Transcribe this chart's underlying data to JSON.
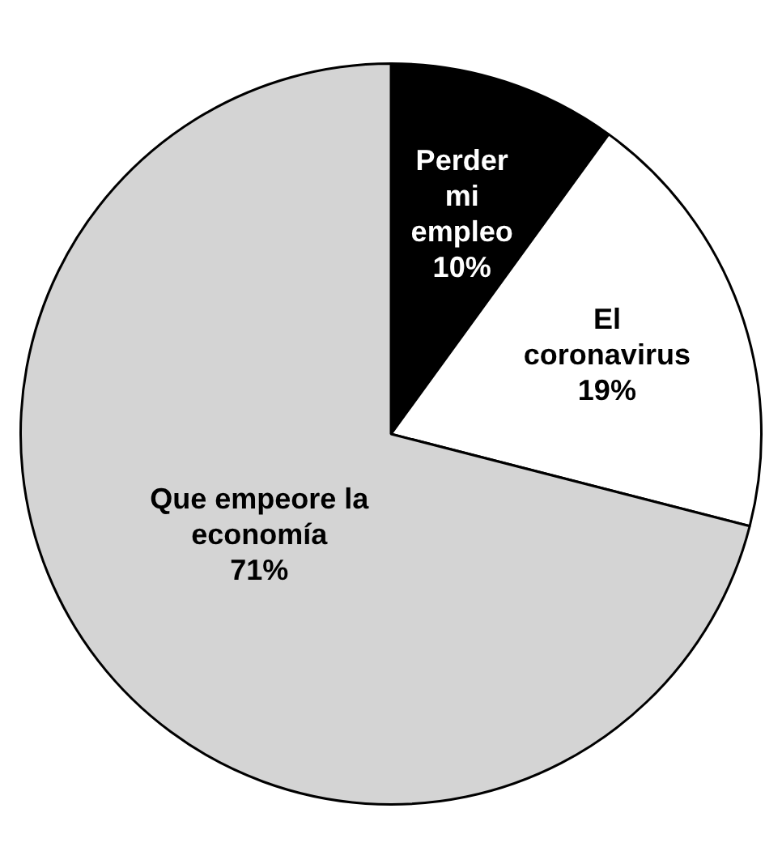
{
  "chart_data": {
    "type": "pie",
    "categories": [
      "Perder mi empleo",
      "El coronavirus",
      "Que empeore la economía"
    ],
    "values": [
      10,
      19,
      71
    ],
    "colors": [
      "#000000",
      "#ffffff",
      "#d4d4d4"
    ],
    "value_labels": [
      "10%",
      "19%",
      "71%"
    ],
    "legend": false
  }
}
